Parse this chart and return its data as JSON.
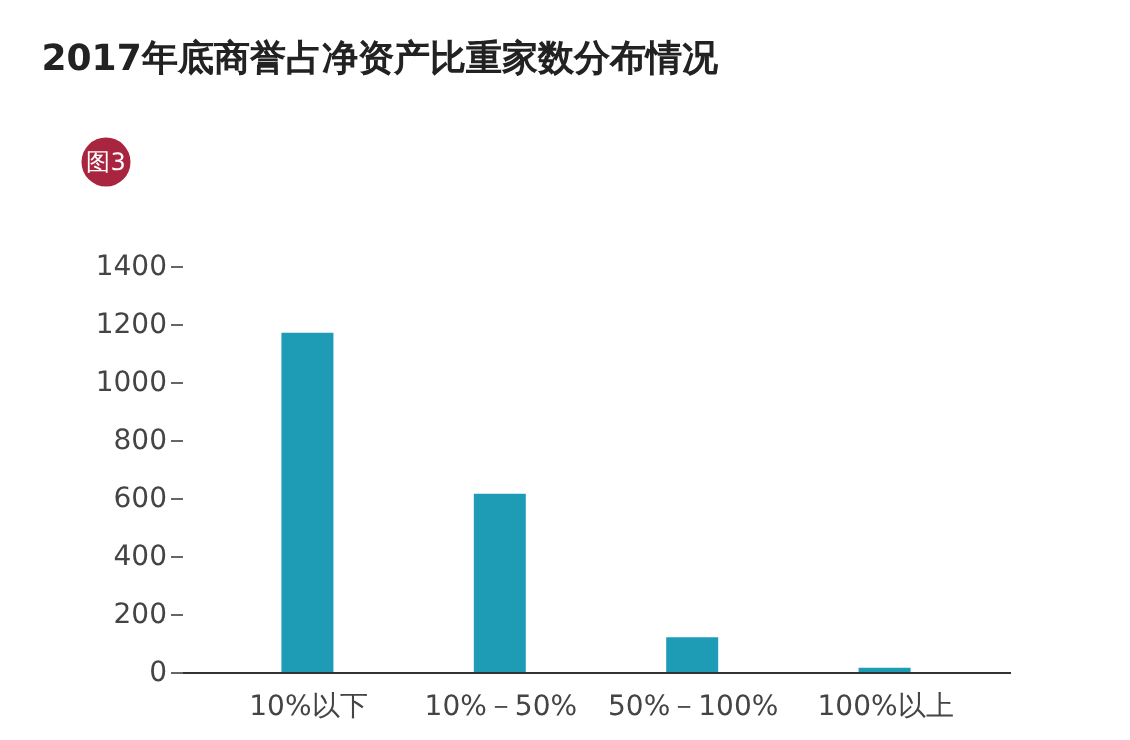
{
  "chart_data": {
    "type": "bar",
    "title": "2017年底商誉占净资产比重家数分布情况",
    "annotations": [
      "图3"
    ],
    "categories": [
      "10%以下",
      "10%－50%",
      "50%－100%",
      "100%以上"
    ],
    "values": [
      1170,
      615,
      120,
      15
    ],
    "color": "#1f9cb5",
    "ylim": [
      0,
      1400
    ],
    "yticks": [
      0,
      200,
      400,
      600,
      800,
      1000,
      1200,
      1400
    ],
    "grid": false
  }
}
